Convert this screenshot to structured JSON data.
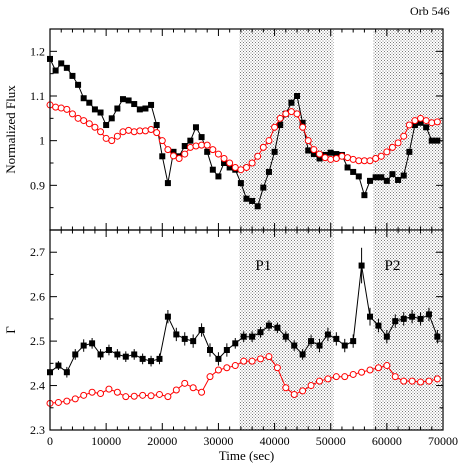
{
  "corner_label": "Orb 546",
  "colors": {
    "series_black": "#000000",
    "series_red": "#ff0000",
    "shade": "#808080"
  },
  "chart_data": [
    {
      "panel": "top",
      "type": "line",
      "xlabel": "",
      "ylabel": "Normalized Flux",
      "xlim": [
        0,
        70000
      ],
      "ylim": [
        0.8,
        1.25
      ],
      "yticks": [
        0.9,
        1,
        1.1,
        1.2
      ],
      "ytick_labels": [
        "0.9",
        "1",
        "1.1",
        "1.2"
      ],
      "xticks": [
        0,
        10000,
        20000,
        30000,
        40000,
        50000,
        60000,
        70000
      ],
      "shaded_intervals": [
        [
          33700,
          50500
        ],
        [
          57600,
          70000
        ]
      ],
      "series": [
        {
          "color": "#000000",
          "marker": "square",
          "x": [
            0,
            1000,
            2000,
            3000,
            4000,
            5000,
            6000,
            7000,
            8000,
            9000,
            10000,
            11000,
            12000,
            13000,
            14000,
            15000,
            16000,
            17000,
            18000,
            19000,
            20000,
            21000,
            22000,
            23000,
            24000,
            25000,
            26000,
            27000,
            28000,
            29000,
            30000,
            31000,
            32000,
            33000,
            34000,
            35000,
            36000,
            37000,
            38000,
            39000,
            40000,
            41000,
            42000,
            43000,
            44000,
            45000,
            46000,
            47000,
            48000,
            49000,
            50000,
            51000,
            52000,
            53000,
            54000,
            55000,
            56000,
            57000,
            58000,
            59000,
            60000,
            61000,
            62000,
            63000,
            64000,
            65000,
            66000,
            67000,
            68000,
            69000
          ],
          "y": [
            1.183,
            1.157,
            1.173,
            1.163,
            1.145,
            1.125,
            1.095,
            1.085,
            1.07,
            1.063,
            1.035,
            1.05,
            1.072,
            1.093,
            1.09,
            1.082,
            1.07,
            1.072,
            1.08,
            1.035,
            0.965,
            0.905,
            0.975,
            0.965,
            0.988,
            1.0,
            1.03,
            1.008,
            0.975,
            0.935,
            0.92,
            0.95,
            0.94,
            0.935,
            0.905,
            0.87,
            0.865,
            0.853,
            0.895,
            0.93,
            0.975,
            1.035,
            1.06,
            1.085,
            1.1,
            1.04,
            0.978,
            0.97,
            0.96,
            0.968,
            0.973,
            0.97,
            0.968,
            0.94,
            0.93,
            0.92,
            0.878,
            0.91,
            0.918,
            0.918,
            0.91,
            0.925,
            0.912,
            0.922,
            0.975,
            1.035,
            1.04,
            1.03,
            1.0,
            1.0
          ]
        },
        {
          "color": "#ff0000",
          "marker": "open-circle",
          "x": [
            0,
            1000,
            2000,
            3000,
            4000,
            5000,
            6000,
            7000,
            8000,
            9000,
            10000,
            11000,
            12000,
            13000,
            14000,
            15000,
            16000,
            17000,
            18000,
            19000,
            20000,
            21000,
            22000,
            23000,
            24000,
            25000,
            26000,
            27000,
            28000,
            29000,
            30000,
            31000,
            32000,
            33000,
            34000,
            35000,
            36000,
            37000,
            38000,
            39000,
            40000,
            41000,
            42000,
            43000,
            44000,
            45000,
            46000,
            47000,
            48000,
            49000,
            50000,
            51000,
            52000,
            53000,
            54000,
            55000,
            56000,
            57000,
            58000,
            59000,
            60000,
            61000,
            62000,
            63000,
            64000,
            65000,
            66000,
            67000,
            68000,
            69000
          ],
          "y": [
            1.08,
            1.075,
            1.073,
            1.07,
            1.06,
            1.05,
            1.045,
            1.038,
            1.03,
            1.02,
            1.005,
            1.0,
            1.01,
            1.02,
            1.023,
            1.02,
            1.022,
            1.022,
            1.025,
            1.018,
            1.0,
            0.98,
            0.966,
            0.96,
            0.97,
            0.985,
            0.988,
            0.99,
            0.99,
            0.98,
            0.97,
            0.96,
            0.95,
            0.94,
            0.935,
            0.94,
            0.95,
            0.965,
            0.985,
            1.0,
            1.03,
            1.05,
            1.06,
            1.065,
            1.06,
            1.03,
            1.0,
            0.98,
            0.97,
            0.962,
            0.958,
            0.96,
            0.965,
            0.962,
            0.958,
            0.955,
            0.955,
            0.955,
            0.96,
            0.965,
            0.975,
            0.985,
            0.995,
            1.01,
            1.035,
            1.045,
            1.05,
            1.045,
            1.04,
            1.042
          ]
        }
      ]
    },
    {
      "panel": "bottom",
      "type": "line",
      "xlabel": "Time (sec)",
      "ylabel": "Γ",
      "xlim": [
        0,
        70000
      ],
      "ylim": [
        2.3,
        2.75
      ],
      "yticks": [
        2.3,
        2.4,
        2.5,
        2.6,
        2.7
      ],
      "ytick_labels": [
        "2.3",
        "2.4",
        "2.5",
        "2.6",
        "2.7"
      ],
      "xticks": [
        0,
        10000,
        20000,
        30000,
        40000,
        50000,
        60000,
        70000
      ],
      "xtick_labels": [
        "0",
        "10000",
        "20000",
        "30000",
        "40000",
        "50000",
        "60000",
        "70000"
      ],
      "shaded_intervals": [
        [
          33700,
          50500
        ],
        [
          57600,
          70000
        ]
      ],
      "annotations": [
        {
          "text": "P1",
          "x": 38000,
          "y": 2.66
        },
        {
          "text": "P2",
          "x": 61000,
          "y": 2.66
        }
      ],
      "series": [
        {
          "color": "#000000",
          "marker": "square",
          "error_bars": true,
          "x": [
            0,
            1500,
            3000,
            4500,
            6000,
            7500,
            9000,
            10500,
            12000,
            13500,
            15000,
            16500,
            18000,
            19500,
            21000,
            22500,
            24000,
            25500,
            27000,
            28500,
            30000,
            31500,
            33000,
            34500,
            36000,
            37500,
            39000,
            40500,
            42000,
            43500,
            45000,
            46500,
            48000,
            49500,
            51000,
            52500,
            54000,
            55500,
            57000,
            58500,
            60000,
            61500,
            63000,
            64500,
            66000,
            67500,
            69000
          ],
          "y": [
            2.43,
            2.445,
            2.43,
            2.47,
            2.49,
            2.495,
            2.47,
            2.48,
            2.47,
            2.465,
            2.47,
            2.46,
            2.455,
            2.46,
            2.555,
            2.515,
            2.505,
            2.5,
            2.525,
            2.48,
            2.46,
            2.48,
            2.495,
            2.51,
            2.51,
            2.52,
            2.535,
            2.53,
            2.51,
            2.49,
            2.47,
            2.5,
            2.49,
            2.515,
            2.505,
            2.49,
            2.5,
            2.67,
            2.555,
            2.535,
            2.51,
            2.545,
            2.55,
            2.555,
            2.55,
            2.56,
            2.51
          ],
          "err": [
            0.01,
            0.01,
            0.012,
            0.012,
            0.014,
            0.012,
            0.012,
            0.012,
            0.012,
            0.012,
            0.012,
            0.012,
            0.012,
            0.012,
            0.015,
            0.015,
            0.015,
            0.015,
            0.015,
            0.015,
            0.015,
            0.015,
            0.012,
            0.012,
            0.012,
            0.012,
            0.012,
            0.012,
            0.012,
            0.012,
            0.012,
            0.015,
            0.015,
            0.015,
            0.015,
            0.015,
            0.015,
            0.04,
            0.02,
            0.015,
            0.015,
            0.015,
            0.015,
            0.015,
            0.015,
            0.015,
            0.015
          ]
        },
        {
          "color": "#ff0000",
          "marker": "open-circle",
          "x": [
            0,
            1500,
            3000,
            4500,
            6000,
            7500,
            9000,
            10500,
            12000,
            13500,
            15000,
            16500,
            18000,
            19500,
            21000,
            22500,
            24000,
            25500,
            27000,
            28500,
            30000,
            31500,
            33000,
            34500,
            36000,
            37500,
            39000,
            40500,
            42000,
            43500,
            45000,
            46500,
            48000,
            49500,
            51000,
            52500,
            54000,
            55500,
            57000,
            58500,
            60000,
            61500,
            63000,
            64500,
            66000,
            67500,
            69000
          ],
          "y": [
            2.36,
            2.362,
            2.365,
            2.37,
            2.378,
            2.385,
            2.382,
            2.392,
            2.385,
            2.375,
            2.376,
            2.378,
            2.377,
            2.38,
            2.375,
            2.39,
            2.405,
            2.395,
            2.385,
            2.42,
            2.435,
            2.44,
            2.445,
            2.455,
            2.455,
            2.46,
            2.465,
            2.44,
            2.395,
            2.38,
            2.388,
            2.4,
            2.41,
            2.415,
            2.42,
            2.42,
            2.425,
            2.43,
            2.435,
            2.44,
            2.445,
            2.42,
            2.41,
            2.41,
            2.408,
            2.41,
            2.415
          ]
        }
      ]
    }
  ]
}
